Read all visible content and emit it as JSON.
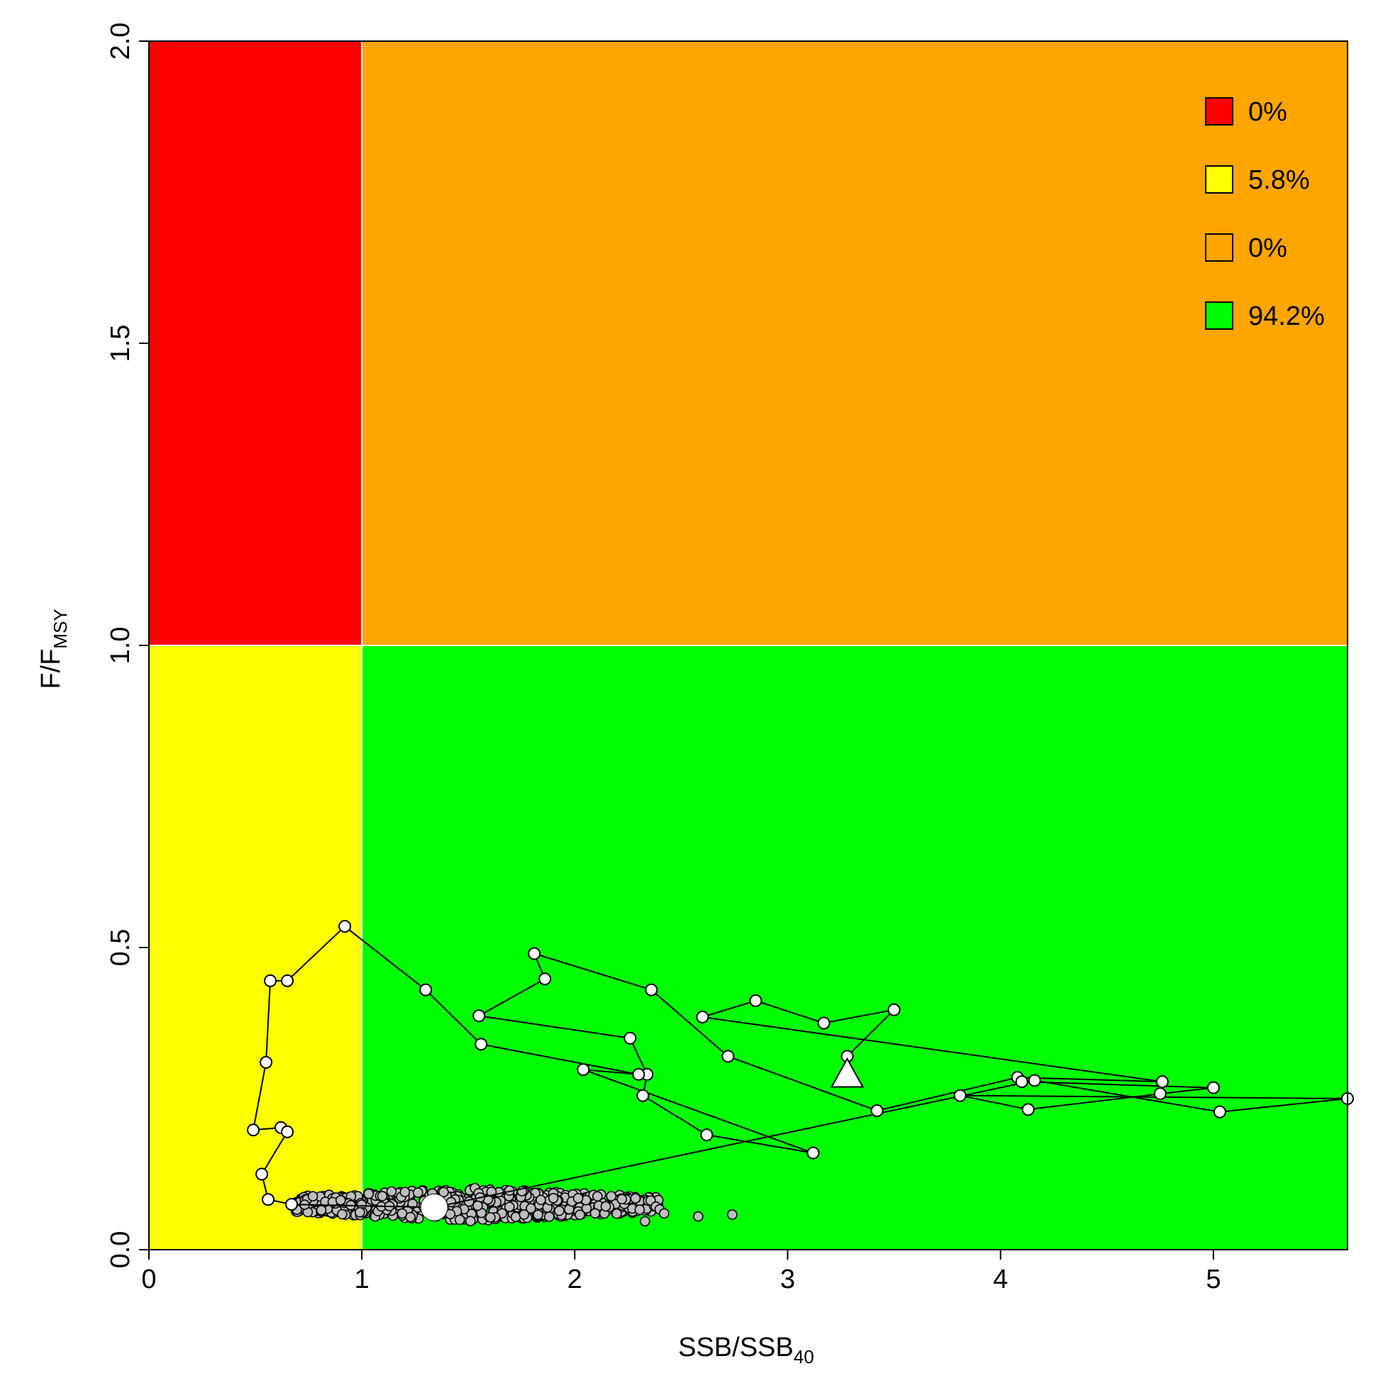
{
  "chart_data": {
    "type": "scatter",
    "xlabel": {
      "main": "SSB/SSB",
      "sub": "40"
    },
    "ylabel": {
      "main": "F/F",
      "sub": "MSY"
    },
    "xlim": [
      0,
      5.63
    ],
    "ylim": [
      0,
      2.0
    ],
    "x_ticks": [
      "0",
      "1",
      "2",
      "3",
      "4",
      "5"
    ],
    "y_ticks": [
      "0.0",
      "0.5",
      "1.0",
      "1.5",
      "2.0"
    ],
    "x_tick_values": [
      0,
      1,
      2,
      3,
      4,
      5
    ],
    "y_tick_values": [
      0,
      0.5,
      1.0,
      1.5,
      2.0
    ],
    "zones": [
      {
        "name": "overfished-overfishing",
        "color": "#ff0000",
        "x": [
          0,
          1
        ],
        "y": [
          1,
          2
        ]
      },
      {
        "name": "overfished",
        "color": "#ffff00",
        "x": [
          0,
          1
        ],
        "y": [
          0,
          1
        ]
      },
      {
        "name": "overfishing",
        "color": "#ffa500",
        "x": [
          1,
          5.63
        ],
        "y": [
          1,
          2
        ]
      },
      {
        "name": "healthy",
        "color": "#00ff00",
        "x": [
          1,
          5.63
        ],
        "y": [
          0,
          1
        ]
      }
    ],
    "legend": {
      "position": "top-right",
      "entries": [
        {
          "label": "0%",
          "color": "#ff0000"
        },
        {
          "label": "5.8%",
          "color": "#ffff00"
        },
        {
          "label": "0%",
          "color": "#ffa500"
        },
        {
          "label": "94.2%",
          "color": "#00ff00"
        }
      ]
    },
    "trajectory": {
      "x": [
        3.28,
        3.5,
        3.17,
        2.85,
        2.6,
        4.76,
        4.08,
        3.42,
        2.72,
        2.36,
        1.81,
        1.86,
        1.55,
        2.26,
        2.34,
        2.32,
        2.62,
        3.12,
        2.04,
        2.3,
        1.56,
        1.3,
        0.92,
        0.65,
        0.57,
        0.55,
        0.49,
        0.62,
        0.65,
        0.53,
        0.56,
        0.67,
        1.34,
        4.16,
        5.03,
        5.63,
        3.81,
        4.13,
        4.75,
        5.0,
        4.1
      ],
      "y": [
        0.32,
        0.397,
        0.375,
        0.412,
        0.385,
        0.278,
        0.285,
        0.23,
        0.32,
        0.43,
        0.49,
        0.448,
        0.387,
        0.35,
        0.29,
        0.255,
        0.19,
        0.16,
        0.298,
        0.29,
        0.34,
        0.43,
        0.535,
        0.445,
        0.445,
        0.31,
        0.198,
        0.202,
        0.195,
        0.125,
        0.083,
        0.075,
        0.07,
        0.28,
        0.228,
        0.25,
        0.255,
        0.232,
        0.258,
        0.268,
        0.278
      ]
    },
    "terminal_point": {
      "x": 3.28,
      "y": 0.29,
      "marker": "triangle"
    },
    "projection_mean": {
      "x": 1.34,
      "y": 0.07,
      "marker": "large-circle"
    },
    "projection_cloud": {
      "n": 700,
      "x_range": [
        0.67,
        2.4
      ],
      "y_range": [
        0.045,
        0.135
      ],
      "center": [
        1.5,
        0.075
      ],
      "outliers": [
        [
          2.33,
          0.047
        ],
        [
          2.58,
          0.055
        ],
        [
          2.74,
          0.058
        ],
        [
          2.42,
          0.06
        ]
      ]
    }
  }
}
